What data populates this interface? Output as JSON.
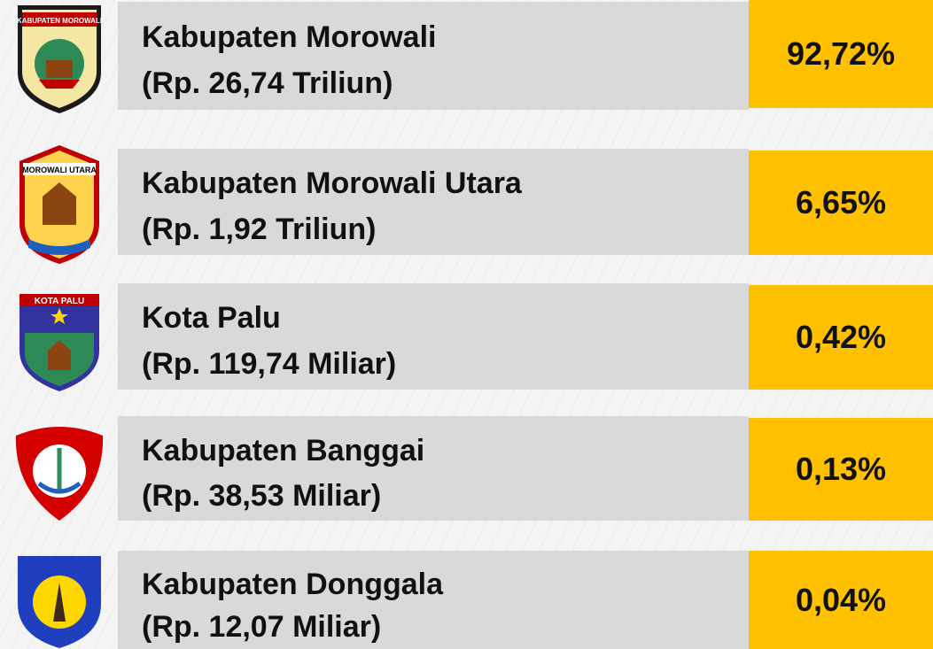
{
  "rows": [
    {
      "name": "Kabupaten Morowali",
      "amount": "(Rp. 26,74 Triliun)",
      "share": "92,72%",
      "emblem": "KABUPATEN MOROWALI"
    },
    {
      "name": "Kabupaten Morowali Utara",
      "amount": "(Rp. 1,92 Triliun)",
      "share": "6,65%",
      "emblem": "MOROWALI UTARA"
    },
    {
      "name": "Kota Palu",
      "amount": "(Rp. 119,74 Miliar)",
      "share": "0,42%",
      "emblem": "KOTA PALU"
    },
    {
      "name": "Kabupaten Banggai",
      "amount": "(Rp. 38,53 Miliar)",
      "share": "0,13%"
    },
    {
      "name": "Kabupaten Donggala",
      "amount": "(Rp. 12,07 Miliar)",
      "share": "0,04%"
    }
  ]
}
